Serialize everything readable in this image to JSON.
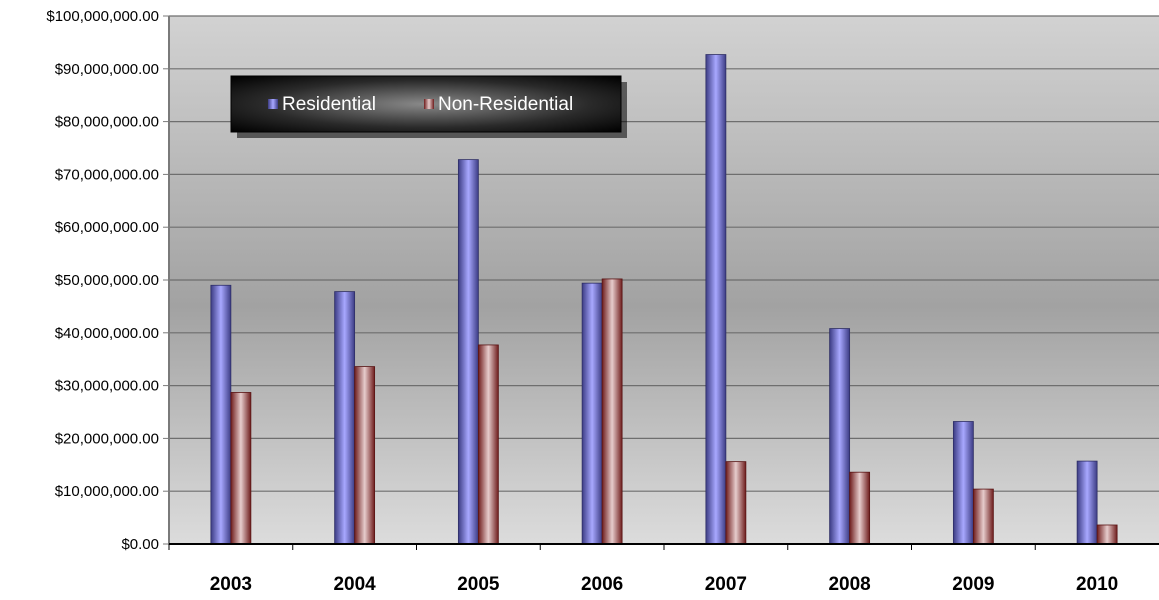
{
  "chart_data": {
    "type": "bar",
    "categories": [
      "2003",
      "2004",
      "2005",
      "2006",
      "2007",
      "2008",
      "2009",
      "2010"
    ],
    "series": [
      {
        "name": "Residential",
        "values": [
          49000000,
          47800000,
          72800000,
          49400000,
          92700000,
          40800000,
          23200000,
          15700000
        ],
        "color": "#7878d8"
      },
      {
        "name": "Non-Residential",
        "values": [
          28700000,
          33600000,
          37700000,
          50200000,
          15600000,
          13600000,
          10400000,
          3600000
        ],
        "color": "#b85a5a"
      }
    ],
    "ylim": [
      0,
      100000000
    ],
    "yticks": [
      0,
      10000000,
      20000000,
      30000000,
      40000000,
      50000000,
      60000000,
      70000000,
      80000000,
      90000000,
      100000000
    ],
    "ytick_labels": [
      "$0.00",
      "$10,000,000.00",
      "$20,000,000.00",
      "$30,000,000.00",
      "$40,000,000.00",
      "$50,000,000.00",
      "$60,000,000.00",
      "$70,000,000.00",
      "$80,000,000.00",
      "$90,000,000.00",
      "$100,000,000.00"
    ],
    "title": "",
    "xlabel": "",
    "ylabel": "",
    "grid": true,
    "legend_position": "top-left"
  }
}
